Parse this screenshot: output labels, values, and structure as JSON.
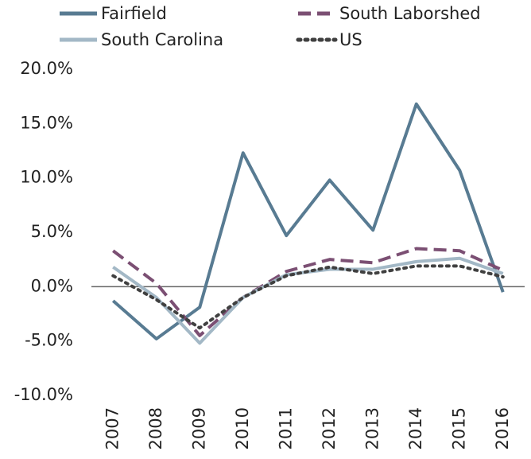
{
  "chart_data": {
    "type": "line",
    "categories": [
      "2007",
      "2008",
      "2009",
      "2010",
      "2011",
      "2012",
      "2013",
      "2014",
      "2015",
      "2016"
    ],
    "series": [
      {
        "name": "Fairfield",
        "color": "#587b92",
        "dash": "solid",
        "values": [
          -1.3,
          -4.8,
          -1.9,
          12.3,
          4.7,
          9.8,
          5.2,
          16.8,
          10.7,
          -0.5
        ]
      },
      {
        "name": "South Laborshed",
        "color": "#7b4f73",
        "dash": "dashed",
        "values": [
          3.3,
          0.3,
          -4.5,
          -1.0,
          1.4,
          2.5,
          2.2,
          3.5,
          3.3,
          1.5
        ]
      },
      {
        "name": "South Carolina",
        "color": "#a3b8c6",
        "dash": "solid",
        "values": [
          1.8,
          -1.0,
          -5.2,
          -1.0,
          1.1,
          1.6,
          1.6,
          2.3,
          2.6,
          1.2
        ]
      },
      {
        "name": "US",
        "color": "#404040",
        "dash": "dotted",
        "values": [
          1.0,
          -1.2,
          -3.8,
          -1.0,
          1.0,
          1.8,
          1.2,
          1.9,
          1.9,
          0.9
        ]
      }
    ],
    "ylim": [
      -10,
      20
    ],
    "yticks": [
      {
        "value": -10,
        "label": "-10.0%"
      },
      {
        "value": -5,
        "label": "-5.0%"
      },
      {
        "value": 0,
        "label": "0.0%"
      },
      {
        "value": 5,
        "label": "5.0%"
      },
      {
        "value": 10,
        "label": "10.0%"
      },
      {
        "value": 15,
        "label": "15.0%"
      },
      {
        "value": 20,
        "label": "20.0%"
      }
    ],
    "grid": false
  }
}
